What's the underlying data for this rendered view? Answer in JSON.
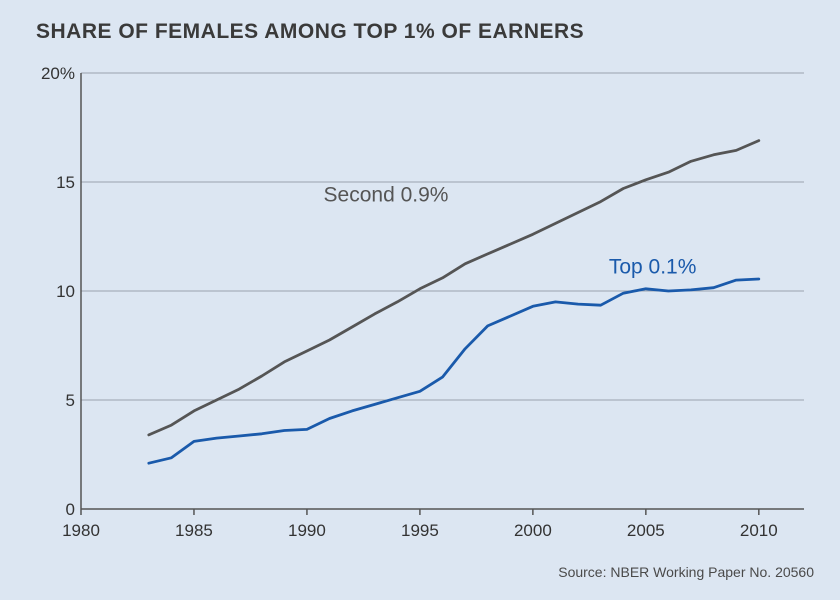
{
  "chart_data": {
    "type": "line",
    "title": "SHARE OF FEMALES AMONG TOP 1% OF EARNERS",
    "source": "Source: NBER Working Paper No. 20560",
    "xlabel": "",
    "ylabel": "",
    "xlim": [
      1980,
      2012
    ],
    "ylim": [
      0,
      20
    ],
    "x_ticks": [
      1980,
      1985,
      1990,
      1995,
      2000,
      2005,
      2010
    ],
    "y_ticks": [
      {
        "value": 0,
        "label": "0"
      },
      {
        "value": 5,
        "label": "5"
      },
      {
        "value": 10,
        "label": "10"
      },
      {
        "value": 15,
        "label": "15"
      },
      {
        "value": 20,
        "label": "20%"
      }
    ],
    "grid": "horizontal",
    "series": [
      {
        "name": "Second 0.9%",
        "color": "#555555",
        "label_at": {
          "x": 1993.5,
          "y": 14.1
        },
        "x": [
          1983,
          1984,
          1985,
          1986,
          1987,
          1988,
          1989,
          1990,
          1991,
          1992,
          1993,
          1994,
          1995,
          1996,
          1997,
          1998,
          1999,
          2000,
          2001,
          2002,
          2003,
          2004,
          2005,
          2006,
          2007,
          2008,
          2009,
          2010
        ],
        "values": [
          3.4,
          3.85,
          4.5,
          5.0,
          5.5,
          6.1,
          6.75,
          7.25,
          7.75,
          8.35,
          8.95,
          9.5,
          10.1,
          10.6,
          11.25,
          11.7,
          12.15,
          12.6,
          13.1,
          13.6,
          14.1,
          14.7,
          15.1,
          15.45,
          15.95,
          16.25,
          16.45,
          16.9
        ]
      },
      {
        "name": "Top 0.1%",
        "color": "#1a5aab",
        "label_at": {
          "x": 2005.3,
          "y": 10.8
        },
        "x": [
          1983,
          1984,
          1985,
          1986,
          1987,
          1988,
          1989,
          1990,
          1991,
          1992,
          1993,
          1994,
          1995,
          1996,
          1997,
          1998,
          1999,
          2000,
          2001,
          2002,
          2003,
          2004,
          2005,
          2006,
          2007,
          2008,
          2009,
          2010
        ],
        "values": [
          2.1,
          2.35,
          3.1,
          3.25,
          3.35,
          3.45,
          3.6,
          3.65,
          4.15,
          4.5,
          4.8,
          5.1,
          5.4,
          6.05,
          7.35,
          8.4,
          8.85,
          9.3,
          9.5,
          9.4,
          9.35,
          9.9,
          10.1,
          10.0,
          10.05,
          10.15,
          10.5,
          10.55
        ]
      }
    ]
  }
}
